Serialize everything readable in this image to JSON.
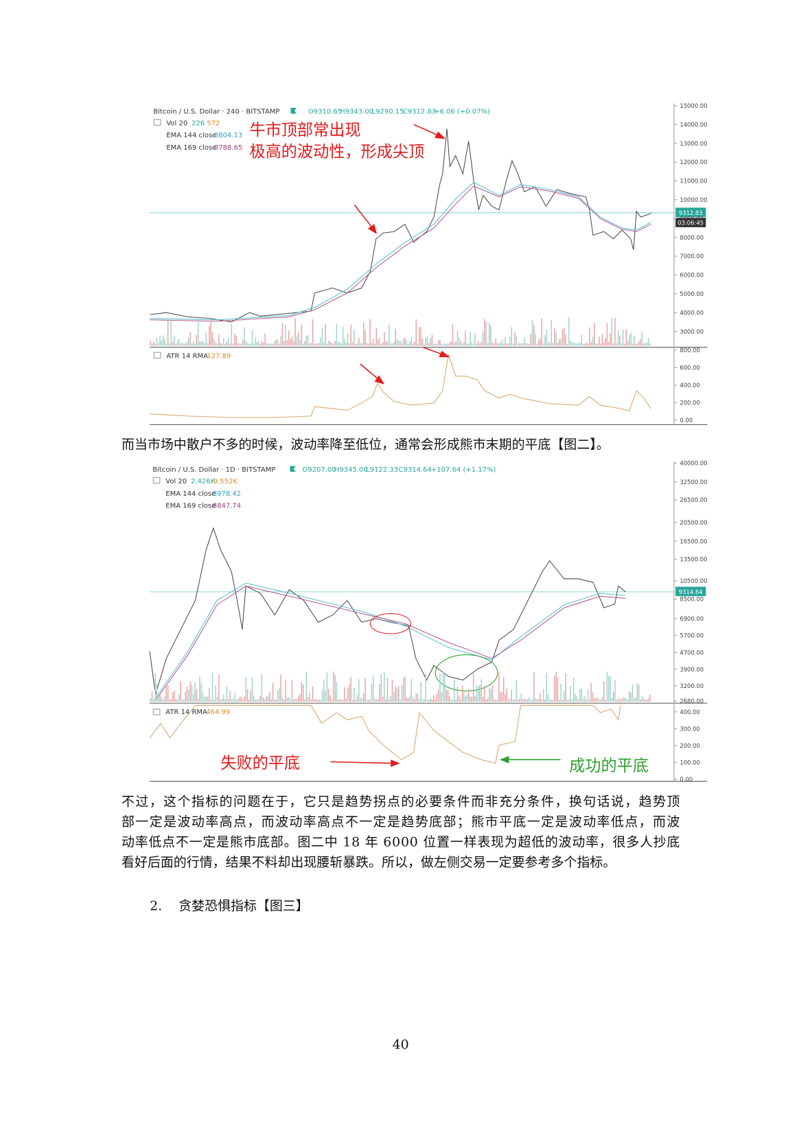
{
  "figure_1": {
    "symbol": "Bitcoin / U.S. Dollar · 240 · BITSTAMP",
    "open": "O9310.65",
    "high": "H9343.00",
    "low": "L9290.15",
    "close": "C9312.83",
    "change": "+6.06 (+0.07%)",
    "vol_label": "Vol 20",
    "vol_a": "226",
    "vol_b": "572",
    "ema144_label": "EMA 144 close",
    "ema144_value": "8804.13",
    "ema169_label": "EMA 169 close",
    "ema169_value": "8788.65",
    "annotation": [
      "牛市顶部常出现",
      "极高的波动性，形成尖顶"
    ],
    "price_axis": [
      "15000.00",
      "14000.00",
      "13000.00",
      "12000.00",
      "11000.00",
      "10000.00",
      "9000.00",
      "8000.00",
      "7000.00",
      "6000.00",
      "5000.00",
      "4000.00",
      "3000.00"
    ],
    "price_tag": "9312.83",
    "time_tag": "03:06:45",
    "atr_label": "ATR 14 RMA",
    "atr_value": "127.89",
    "atr_axis": [
      "800.00",
      "600.00",
      "400.00",
      "200.00",
      "0.00"
    ]
  },
  "paragraph_1": "而当市场中散户不多的时候，波动率降至低位，通常会形成熊市末期的平底【图二】。",
  "figure_2": {
    "symbol": "Bitcoin / U.S. Dollar · 1D · BITSTAMP",
    "open": "O9207.00",
    "high": "H9345.00",
    "low": "L9122.33",
    "close": "C9314.64",
    "change": "+107.64 (+1.17%)",
    "vol_label": "Vol 20",
    "vol_a": "2.426K",
    "vol_b": "9.552K",
    "ema144_label": "EMA 144 close",
    "ema144_value": "8978.42",
    "ema169_label": "EMA 169 close",
    "ema169_value": "8847.74",
    "price_axis": [
      "40000.00",
      "32500.00",
      "26500.00",
      "20500.00",
      "16500.00",
      "13500.00",
      "10500.00",
      "8500.00",
      "6900.00",
      "5700.00",
      "4700.00",
      "3900.00",
      "3200.00",
      "2680.00"
    ],
    "price_tag": "9314.64",
    "atr_label": "ATR 14 RMA",
    "atr_value": "464.99",
    "atr_axis": [
      "400.00",
      "300.00",
      "200.00",
      "100.00",
      "0.00"
    ],
    "annotation_failed": "失败的平底",
    "annotation_success": "成功的平底"
  },
  "paragraph_2": [
    "不过，这个指标的问题在于，它只是趋势拐点的必要条件而非充分条件，换句话说，趋势顶",
    "部一定是波动率高点，而波动率高点不一定是趋势底部；熊市平底一定是波动率低点，而波",
    "动率低点不一定是熊市底部。图二中 18 年 6000 位置一样表现为超低的波动率，很多人抄底",
    "看好后面的行情，结果不料却出现腰斩暴跌。所以，做左侧交易一定要参考多个指标。"
  ],
  "list_item": {
    "number": "2.",
    "text": "贪婪恐惧指标【图三】"
  },
  "page_number": "40"
}
